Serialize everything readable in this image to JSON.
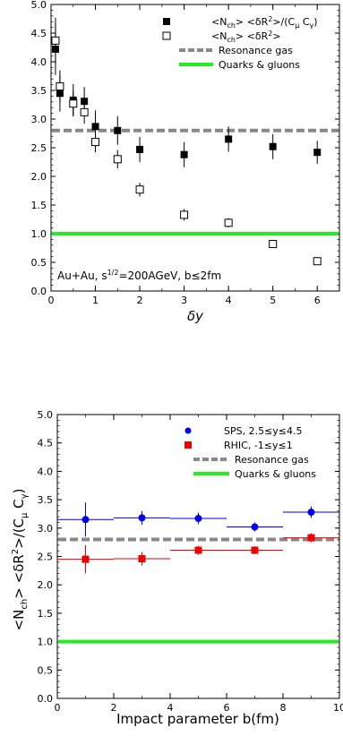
{
  "chart_data": [
    {
      "type": "scatter",
      "panel": "top",
      "xlabel": "δy",
      "ylabel": "",
      "xlim": [
        0,
        6.5
      ],
      "ylim": [
        0,
        5
      ],
      "xticks": [
        0,
        1,
        2,
        3,
        4,
        5,
        6
      ],
      "yticks": [
        "0.0",
        "0.5",
        "1.0",
        "1.5",
        "2.0",
        "2.5",
        "3.0",
        "3.5",
        "4.0",
        "4.5",
        "5.0"
      ],
      "legend_position": "top-right",
      "annotation": "Au+Au, s^{1/2}=200AGeV, b≤2fm",
      "series": [
        {
          "name": "<Nch> <δR²>/(Cμ Cγ)",
          "marker": "filled-square",
          "color": "#000000",
          "x": [
            0.1,
            0.2,
            0.5,
            0.75,
            1.0,
            1.5,
            2.0,
            3.0,
            4.0,
            5.0,
            6.0
          ],
          "y": [
            4.22,
            3.45,
            3.33,
            3.31,
            2.87,
            2.8,
            2.47,
            2.38,
            2.65,
            2.52,
            2.42
          ],
          "yerr": [
            0.45,
            0.32,
            0.28,
            0.25,
            0.28,
            0.25,
            0.22,
            0.22,
            0.22,
            0.22,
            0.2
          ]
        },
        {
          "name": "<Nch> <δR²>",
          "marker": "open-square",
          "color": "#000000",
          "x": [
            0.1,
            0.2,
            0.5,
            0.75,
            1.0,
            1.5,
            2.0,
            3.0,
            4.0,
            5.0,
            6.0
          ],
          "y": [
            4.37,
            3.57,
            3.27,
            3.12,
            2.6,
            2.3,
            1.77,
            1.33,
            1.19,
            0.82,
            0.52
          ],
          "yerr": [
            0.4,
            0.28,
            0.22,
            0.2,
            0.18,
            0.16,
            0.12,
            0.1,
            0.08,
            0.05,
            0.05
          ]
        },
        {
          "name": "Resonance gas",
          "style": "dashed-line",
          "color": "#888888",
          "y": 2.8
        },
        {
          "name": "Quarks & gluons",
          "style": "solid-line",
          "color": "#22ee22",
          "y": 1.0
        }
      ]
    },
    {
      "type": "scatter",
      "panel": "bottom",
      "xlabel": "Impact parameter b(fm)",
      "ylabel": "<Nch> <δR²>/(Cμ Cγ)",
      "xlim": [
        0,
        10
      ],
      "ylim": [
        0,
        5
      ],
      "xticks": [
        0,
        2,
        4,
        6,
        8,
        10
      ],
      "yticks": [
        "0.0",
        "0.5",
        "1.0",
        "1.5",
        "2.0",
        "2.5",
        "3.0",
        "3.5",
        "4.0",
        "4.5",
        "5.0"
      ],
      "legend_position": "top-right",
      "series": [
        {
          "name": "SPS, 2.5≤y≤4.5",
          "marker": "filled-circle",
          "color": "#0000ee",
          "x": [
            1,
            3,
            5,
            7,
            9
          ],
          "xerr": [
            1,
            1,
            1,
            1,
            1
          ],
          "y": [
            3.15,
            3.18,
            3.17,
            3.02,
            3.28
          ],
          "yerr": [
            0.3,
            0.12,
            0.1,
            0.08,
            0.1
          ]
        },
        {
          "name": "RHIC, -1≤y≤1",
          "marker": "filled-square",
          "color": "#ee0000",
          "x": [
            1,
            3,
            5,
            7,
            9
          ],
          "xerr": [
            1,
            1,
            1,
            1,
            1
          ],
          "y": [
            2.45,
            2.46,
            2.61,
            2.61,
            2.83
          ],
          "yerr": [
            0.25,
            0.12,
            0.08,
            0.07,
            0.08
          ]
        },
        {
          "name": "Resonance gas",
          "style": "dashed-line",
          "color": "#888888",
          "y": 2.8
        },
        {
          "name": "Quarks & gluons",
          "style": "solid-line",
          "color": "#22ee22",
          "y": 1.0
        }
      ]
    }
  ]
}
